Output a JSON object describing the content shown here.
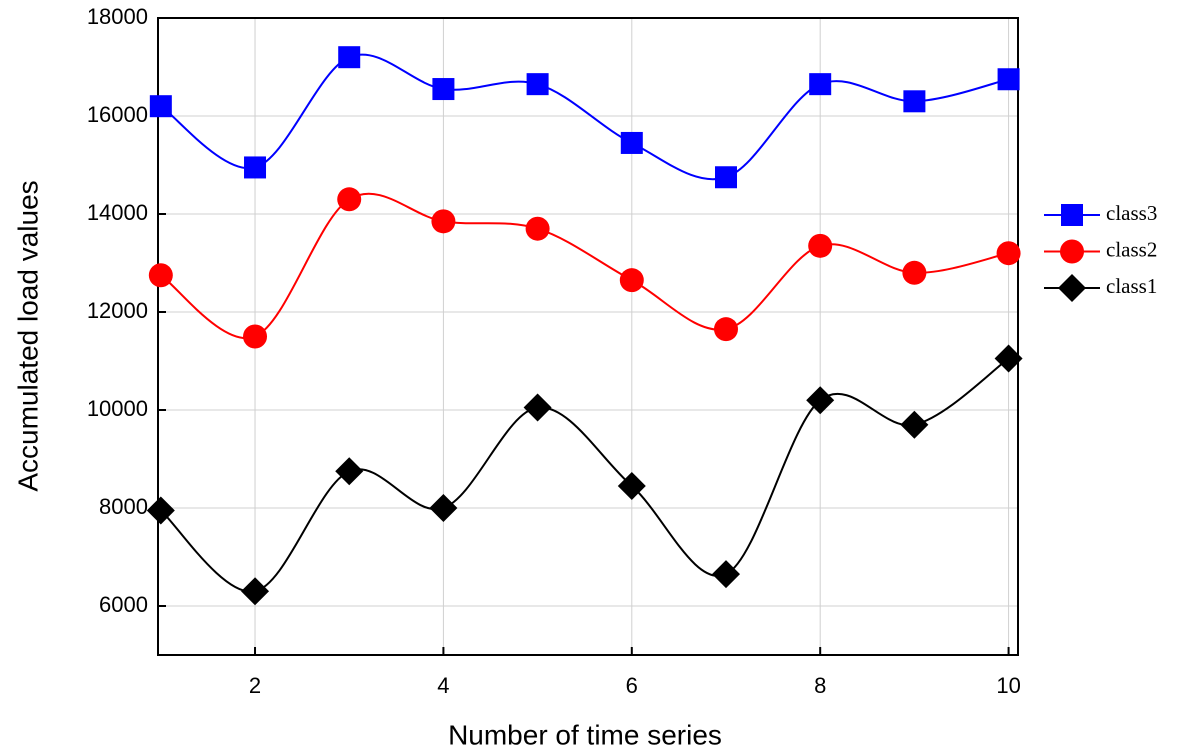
{
  "chart_data": {
    "type": "line",
    "x_label": "Number of time series",
    "y_label": "Accumulated load values",
    "x": [
      1,
      2,
      3,
      4,
      5,
      6,
      7,
      8,
      9,
      10
    ],
    "series": [
      {
        "name": "class3",
        "color": "#0000ff",
        "marker": "square",
        "values": [
          16200,
          14950,
          17200,
          16550,
          16650,
          15450,
          14750,
          16650,
          16300,
          16750
        ]
      },
      {
        "name": "class2",
        "color": "#ff0000",
        "marker": "circle",
        "values": [
          12750,
          11500,
          14300,
          13850,
          13700,
          12650,
          11650,
          13350,
          12800,
          13200
        ]
      },
      {
        "name": "class1",
        "color": "#000000",
        "marker": "diamond",
        "values": [
          7950,
          6300,
          8750,
          8000,
          10050,
          8450,
          6650,
          10200,
          9700,
          11050
        ]
      }
    ],
    "xlim": [
      0.97,
      10.1
    ],
    "xticks": [
      2,
      4,
      6,
      8,
      10
    ],
    "ylim": [
      5000,
      18000
    ],
    "yticks": [
      6000,
      8000,
      10000,
      12000,
      14000,
      16000,
      18000
    ],
    "grid": true,
    "smooth": true,
    "legend": "right"
  }
}
